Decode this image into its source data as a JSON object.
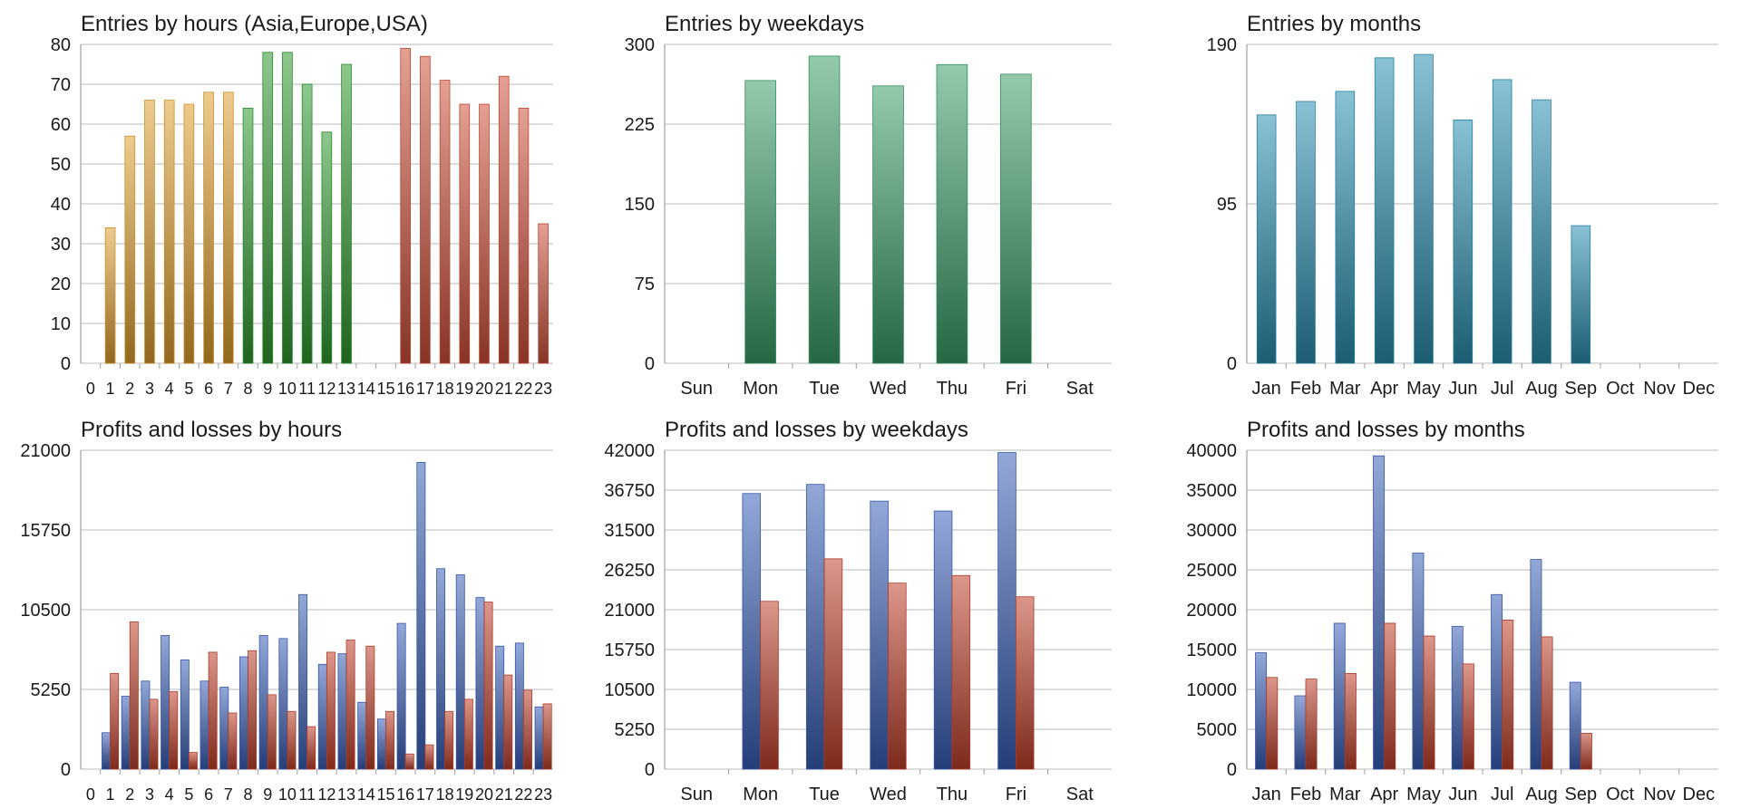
{
  "chart_data": [
    {
      "id": "entries-hours",
      "type": "bar",
      "title": "Entries by hours (Asia,Europe,USA)",
      "categories": [
        "0",
        "1",
        "2",
        "3",
        "4",
        "5",
        "6",
        "7",
        "8",
        "9",
        "10",
        "11",
        "12",
        "13",
        "14",
        "15",
        "16",
        "17",
        "18",
        "19",
        "20",
        "21",
        "22",
        "23"
      ],
      "values": [
        0,
        34,
        57,
        66,
        66,
        65,
        68,
        68,
        64,
        78,
        78,
        70,
        58,
        75,
        0,
        0,
        79,
        77,
        71,
        65,
        65,
        72,
        64,
        35
      ],
      "bar_colors_by_session": {
        "asia_0_7": "#e0a030",
        "europe_8_13": "#2f9a2f",
        "usa_15_23": "#d0503a"
      },
      "yticks": [
        0,
        10,
        20,
        30,
        40,
        50,
        60,
        70,
        80
      ],
      "ylim": [
        0,
        80
      ],
      "grid": true
    },
    {
      "id": "entries-weekdays",
      "type": "bar",
      "title": "Entries by weekdays",
      "categories": [
        "Sun",
        "Mon",
        "Tue",
        "Wed",
        "Thu",
        "Fri",
        "Sat"
      ],
      "values": [
        0,
        266,
        289,
        261,
        281,
        272,
        0
      ],
      "color": "#3a9e68",
      "yticks": [
        0,
        75,
        150,
        225,
        300
      ],
      "ylim": [
        0,
        300
      ],
      "grid": true
    },
    {
      "id": "entries-months",
      "type": "bar",
      "title": "Entries by months",
      "categories": [
        "Jan",
        "Feb",
        "Mar",
        "Apr",
        "May",
        "Jun",
        "Jul",
        "Aug",
        "Sep",
        "Oct",
        "Nov",
        "Dec"
      ],
      "values": [
        148,
        156,
        162,
        182,
        184,
        145,
        169,
        157,
        82,
        0,
        0,
        0
      ],
      "color": "#2a8fb0",
      "yticks": [
        0,
        95,
        190
      ],
      "ylim": [
        0,
        190
      ],
      "grid": true
    },
    {
      "id": "pl-hours",
      "type": "bar",
      "title": "Profits and losses by hours",
      "categories": [
        "0",
        "1",
        "2",
        "3",
        "4",
        "5",
        "6",
        "7",
        "8",
        "9",
        "10",
        "11",
        "12",
        "13",
        "14",
        "15",
        "16",
        "17",
        "18",
        "19",
        "20",
        "21",
        "22",
        "23"
      ],
      "series": [
        {
          "values": [
            0,
            2400,
            4800,
            5800,
            8800,
            7200,
            5800,
            5400,
            7400,
            8800,
            8600,
            11500,
            6900,
            7600,
            4400,
            3300,
            9600,
            20200,
            13200,
            12800,
            11300,
            8100,
            8300,
            4100
          ]
        },
        {
          "values": [
            0,
            6300,
            9700,
            4600,
            5100,
            1100,
            7700,
            3700,
            7800,
            4900,
            3800,
            2800,
            7700,
            8500,
            8100,
            3800,
            1000,
            1600,
            3800,
            4600,
            11000,
            6200,
            5200,
            4300
          ]
        }
      ],
      "series_colors": [
        "#3a60b8",
        "#c0402a"
      ],
      "yticks": [
        0,
        5250,
        10500,
        15750,
        21000
      ],
      "ylim": [
        0,
        21000
      ],
      "grid": true
    },
    {
      "id": "pl-weekdays",
      "type": "bar",
      "title": "Profits and losses by weekdays",
      "categories": [
        "Sun",
        "Mon",
        "Tue",
        "Wed",
        "Thu",
        "Fri",
        "Sat"
      ],
      "series": [
        {
          "values": [
            0,
            36300,
            37500,
            35300,
            34000,
            41700,
            0
          ]
        },
        {
          "values": [
            0,
            22100,
            27700,
            24500,
            25500,
            22700,
            0
          ]
        }
      ],
      "series_colors": [
        "#3a60b8",
        "#c0402a"
      ],
      "yticks": [
        0,
        5250,
        10500,
        15750,
        21000,
        26250,
        31500,
        36750,
        42000
      ],
      "ylim": [
        0,
        42000
      ],
      "grid": true
    },
    {
      "id": "pl-months",
      "type": "bar",
      "title": "Profits and losses by months",
      "categories": [
        "Jan",
        "Feb",
        "Mar",
        "Apr",
        "May",
        "Jun",
        "Jul",
        "Aug",
        "Sep",
        "Oct",
        "Nov",
        "Dec"
      ],
      "series": [
        {
          "values": [
            14600,
            9200,
            18300,
            39300,
            27100,
            17900,
            21900,
            26300,
            10900,
            0,
            0,
            0
          ]
        },
        {
          "values": [
            11500,
            11300,
            12000,
            18300,
            16700,
            13200,
            18700,
            16600,
            4500,
            0,
            0,
            0
          ]
        }
      ],
      "series_colors": [
        "#3a60b8",
        "#c0402a"
      ],
      "yticks": [
        0,
        5000,
        10000,
        15000,
        20000,
        25000,
        30000,
        35000,
        40000
      ],
      "ylim": [
        0,
        40000
      ],
      "grid": true
    }
  ]
}
